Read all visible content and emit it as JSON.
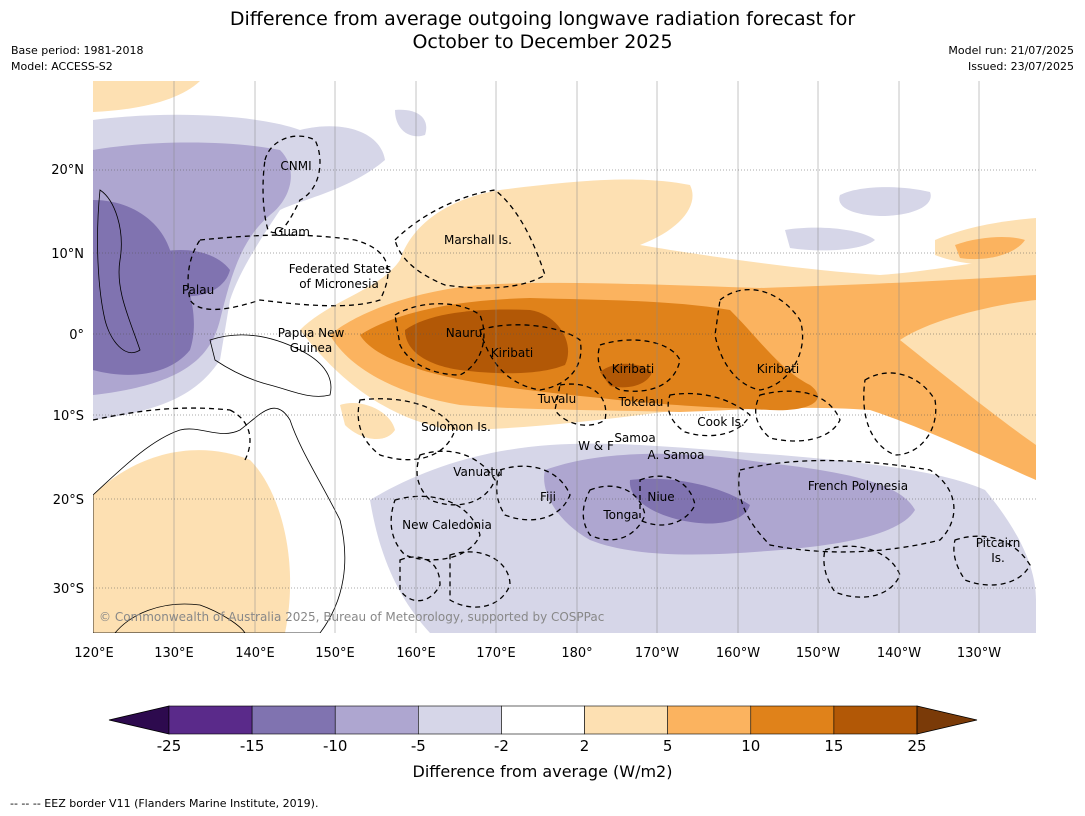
{
  "header": {
    "title_line1": "Difference from average outgoing longwave radiation forecast for",
    "title_line2": "October to December 2025",
    "base_period": "Base period: 1981-2018",
    "model": "Model: ACCESS-S2",
    "model_run": "Model run: 21/07/2025",
    "issued": "Issued: 23/07/2025"
  },
  "map": {
    "lon_ticks": [
      "120°E",
      "130°E",
      "140°E",
      "150°E",
      "160°E",
      "170°E",
      "180°",
      "170°W",
      "160°W",
      "150°W",
      "140°W",
      "130°W"
    ],
    "lat_ticks": [
      "20°N",
      "10°N",
      "0°",
      "10°S",
      "20°S",
      "30°S"
    ],
    "copyright": "© Commonwealth of Australia 2025, Bureau of Meteorology, supported by COSPPac",
    "place_labels": [
      "CNMI",
      "Guam",
      "Marshall Is.",
      "Federated States",
      "of Micronesia",
      "Palau",
      "Papua New",
      "Guinea",
      "Nauru",
      "Kiribati",
      "Kiribati",
      "Kiribati",
      "Tuvalu",
      "Tokelau",
      "Cook Is.",
      "Solomon Is.",
      "W & F",
      "Samoa",
      "A. Samoa",
      "Vanuatu",
      "Fiji",
      "Niue",
      "Tonga",
      "French Polynesia",
      "New Caledonia",
      "Pitcairn",
      "Is."
    ]
  },
  "legend": {
    "tick_labels": [
      "-25",
      "-15",
      "-10",
      "-5",
      "-2",
      "2",
      "5",
      "10",
      "15",
      "25"
    ],
    "colors": [
      "#2d0a4e",
      "#5a2a8a",
      "#8073b0",
      "#aea6d0",
      "#d6d6e8",
      "#ffffff",
      "#fde0b2",
      "#fbb35f",
      "#e0821a",
      "#b25806",
      "#7a3a08"
    ],
    "label": "Difference from average (W/m2)"
  },
  "footnote": "--  --  -- EEZ border V11 (Flanders Marine Institute, 2019)."
}
